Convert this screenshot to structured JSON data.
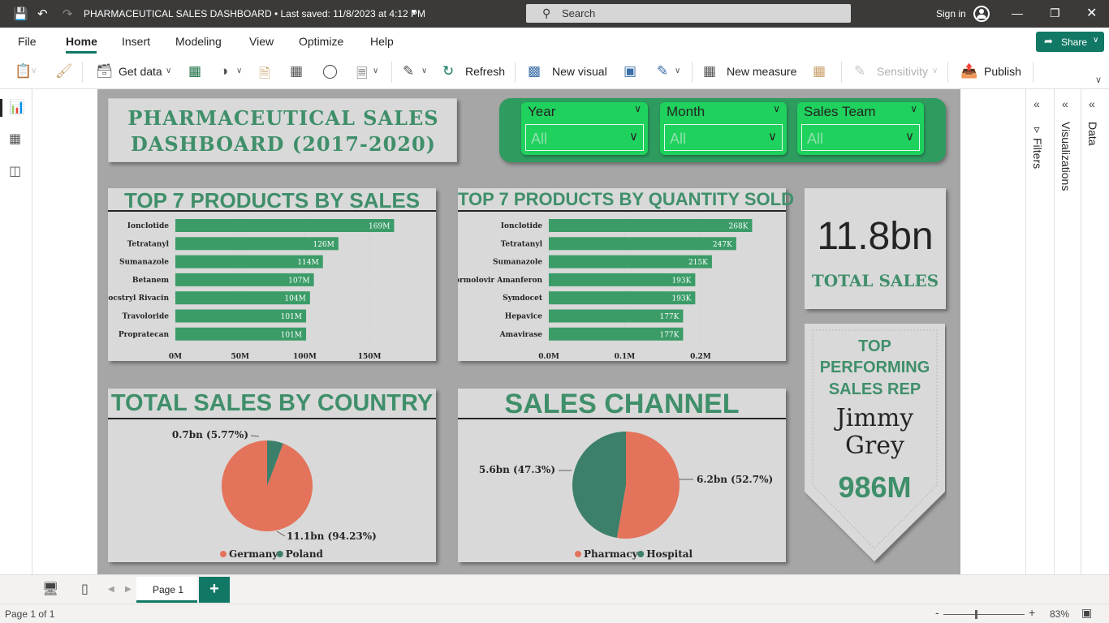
{
  "titlebar": {
    "title": "PHARMACEUTICAL SALES DASHBOARD • Last saved: 11/8/2023 at 4:12 PM",
    "search_placeholder": "Search",
    "signin": "Sign in"
  },
  "menu": {
    "items": [
      "File",
      "Home",
      "Insert",
      "Modeling",
      "View",
      "Optimize",
      "Help"
    ],
    "active": "Home",
    "share": "Share"
  },
  "ribbon": {
    "get_data": "Get data",
    "refresh": "Refresh",
    "new_visual": "New visual",
    "new_measure": "New measure",
    "sensitivity": "Sensitivity",
    "publish": "Publish"
  },
  "dashboard": {
    "title_line1": "PHARMACEUTICAL SALES",
    "title_line2": "DASHBOARD (2017-2020)"
  },
  "slicers": [
    {
      "title": "Year",
      "value": "All"
    },
    {
      "title": "Month",
      "value": "All"
    },
    {
      "title": "Sales Team",
      "value": "All"
    }
  ],
  "kpi": {
    "value": "11.8bn",
    "label": "TOTAL SALES"
  },
  "top_rep": {
    "line1": "TOP",
    "line2": "PERFORMING",
    "line3": "SALES REP",
    "name_first": "Jimmy",
    "name_last": "Grey",
    "value": "986M"
  },
  "chart_data": [
    {
      "type": "bar",
      "orientation": "horizontal",
      "title": "TOP 7 PRODUCTS BY SALES",
      "categories": [
        "Ionclotide",
        "Tetratanyl",
        "Sumanazole",
        "Betanem",
        "Docstryl Rivacin",
        "Travoloride",
        "Propratecan"
      ],
      "values": [
        169,
        126,
        114,
        107,
        104,
        101,
        101
      ],
      "labels": [
        "169M",
        "126M",
        "114M",
        "107M",
        "104M",
        "101M",
        "101M"
      ],
      "xlim": [
        0,
        175
      ],
      "xticks": [
        0,
        50,
        100,
        150
      ],
      "xtick_labels": [
        "0M",
        "50M",
        "100M",
        "150M"
      ],
      "color": "#3b9c68"
    },
    {
      "type": "bar",
      "orientation": "horizontal",
      "title": "TOP 7 PRODUCTS BY QUANTITY SOLD",
      "categories": [
        "Ionclotide",
        "Tetratanyl",
        "Sumanazole",
        "Formolovir Amanferon",
        "Symdocet",
        "Hepavice",
        "Amavirase"
      ],
      "values": [
        268,
        247,
        215,
        193,
        193,
        177,
        177
      ],
      "labels": [
        "268K",
        "247K",
        "215K",
        "193K",
        "193K",
        "177K",
        "177K"
      ],
      "xlim": [
        0,
        290
      ],
      "xticks": [
        0,
        100,
        200
      ],
      "xtick_labels": [
        "0.0M",
        "0.1M",
        "0.2M"
      ],
      "color": "#3b9c68"
    },
    {
      "type": "pie",
      "title": "TOTAL SALES BY COUNTRY",
      "categories": [
        "Germany",
        "Poland"
      ],
      "values": [
        94.23,
        5.77
      ],
      "labels": [
        "11.1bn (94.23%)",
        "0.7bn (5.77%)"
      ],
      "colors": [
        "#e4735b",
        "#3c7f6a"
      ]
    },
    {
      "type": "pie",
      "title": "SALES CHANNEL",
      "categories": [
        "Pharmacy",
        "Hospital"
      ],
      "values": [
        52.7,
        47.3
      ],
      "labels": [
        "6.2bn (52.7%)",
        "5.6bn (47.3%)"
      ],
      "colors": [
        "#e4735b",
        "#3c7f6a"
      ]
    }
  ],
  "panes": {
    "filters": "Filters",
    "visualizations": "Visualizations",
    "data": "Data"
  },
  "pages": {
    "tab": "Page 1",
    "add": "+"
  },
  "status": {
    "page": "Page 1 of 1",
    "zoom": "83%"
  }
}
